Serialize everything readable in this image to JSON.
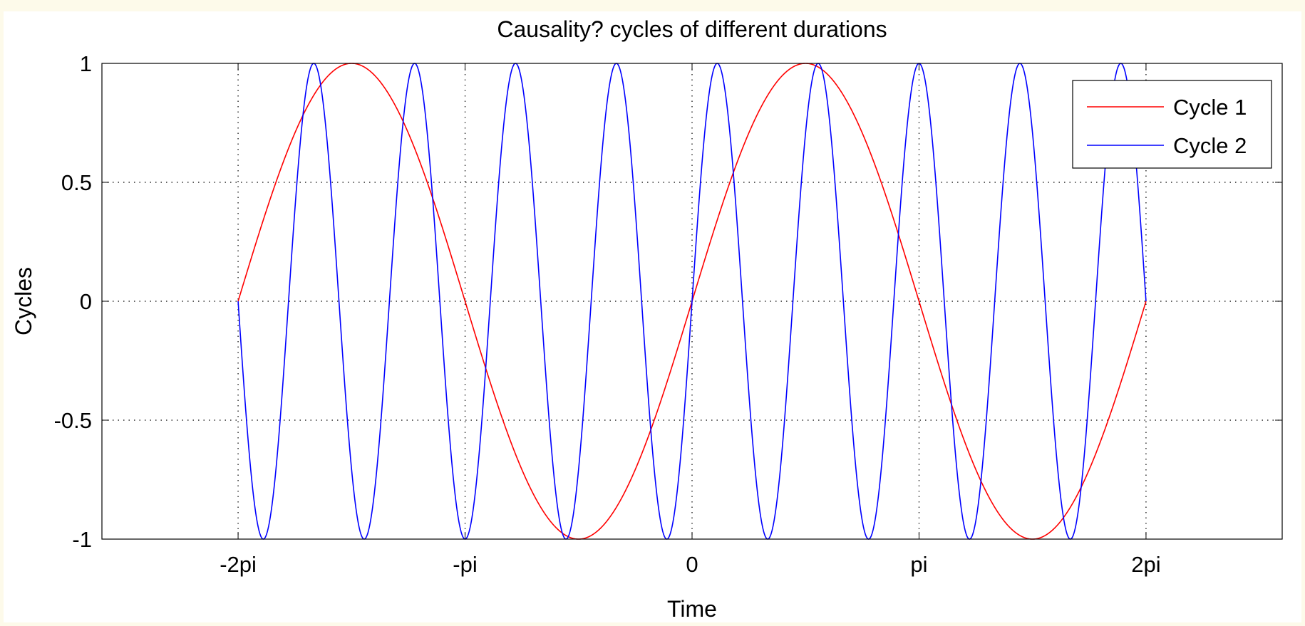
{
  "chart_data": {
    "type": "line",
    "title": "Causality? cycles of different durations",
    "xlabel": "Time",
    "ylabel": "Cycles",
    "xlim": [
      -8.168,
      8.168
    ],
    "ylim": [
      -1,
      1
    ],
    "x_ticks": [
      {
        "value": -6.2832,
        "label": "-2pi"
      },
      {
        "value": -3.1416,
        "label": "-pi"
      },
      {
        "value": 0,
        "label": "0"
      },
      {
        "value": 3.1416,
        "label": "pi"
      },
      {
        "value": 6.2832,
        "label": "2pi"
      }
    ],
    "y_ticks": [
      {
        "value": 1,
        "label": "1"
      },
      {
        "value": 0.5,
        "label": "0.5"
      },
      {
        "value": 0,
        "label": "0"
      },
      {
        "value": -0.5,
        "label": "-0.5"
      },
      {
        "value": -1,
        "label": "-1"
      }
    ],
    "grid": true,
    "grid_style": "dotted",
    "legend_position": "top-right",
    "series": [
      {
        "name": "Cycle 1",
        "color": "#ff0000",
        "function": "sin(t)",
        "frequency": 1,
        "x_range": [
          -6.2832,
          6.2832
        ]
      },
      {
        "name": "Cycle 2",
        "color": "#0000ff",
        "function": "sin(4.5*t)",
        "frequency": 4.5,
        "x_range": [
          -6.2832,
          6.2832
        ]
      }
    ]
  },
  "colors": {
    "background": "#fdfaea",
    "plot_background": "#ffffff",
    "axes": "#000000",
    "grid": "#000000"
  }
}
